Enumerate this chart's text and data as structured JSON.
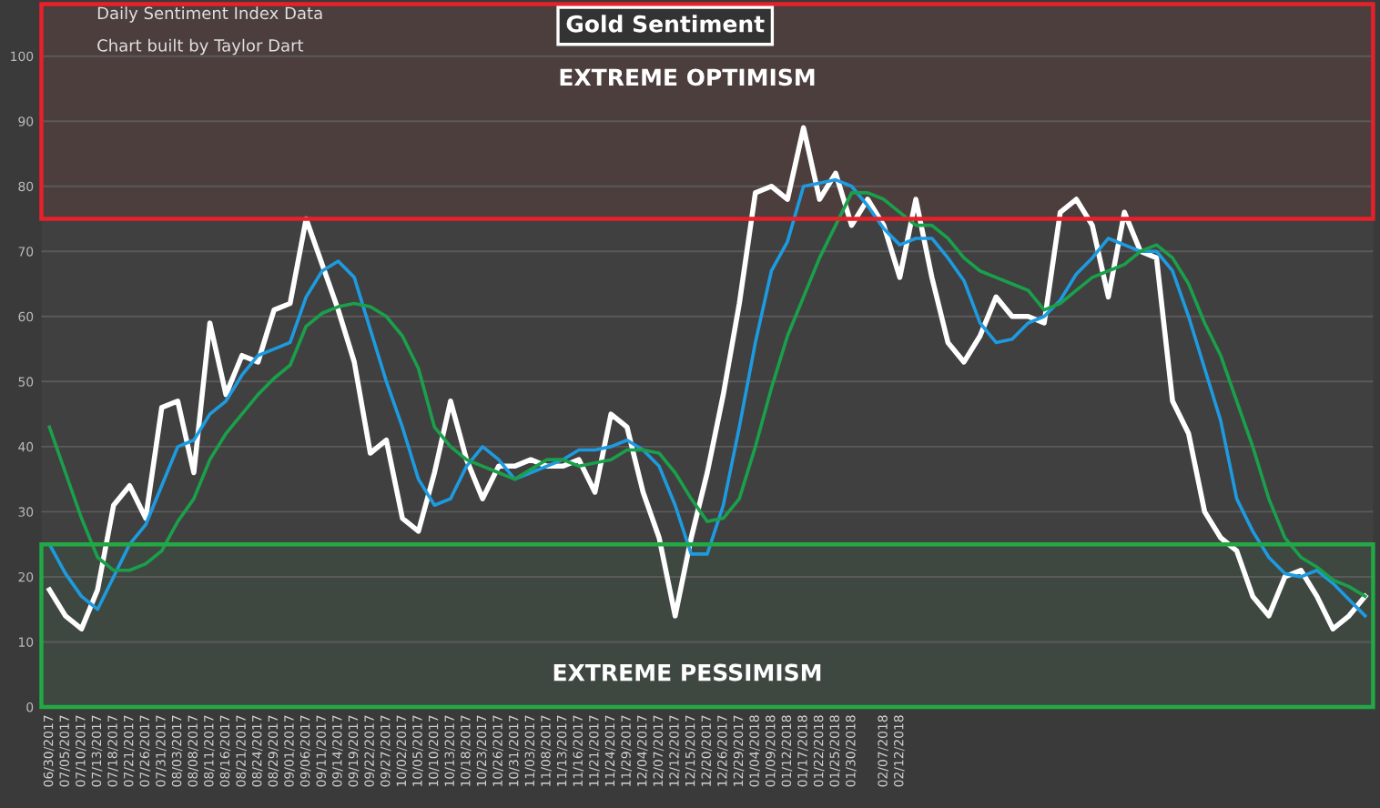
{
  "chart_data": {
    "type": "line",
    "title": "Gold Sentiment",
    "annotations": [
      "Daily Sentiment Index Data",
      "Chart built by Taylor Dart"
    ],
    "categories": [
      "06/30/2017",
      "07/05/2017",
      "07/10/2017",
      "07/13/2017",
      "07/18/2017",
      "07/21/2017",
      "07/26/2017",
      "07/31/2017",
      "08/03/2017",
      "08/08/2017",
      "08/11/2017",
      "08/16/2017",
      "08/21/2017",
      "08/24/2017",
      "08/29/2017",
      "09/01/2017",
      "09/06/2017",
      "09/11/2017",
      "09/14/2017",
      "09/19/2017",
      "09/22/2017",
      "09/27/2017",
      "10/02/2017",
      "10/05/2017",
      "10/10/2017",
      "10/13/2017",
      "10/18/2017",
      "10/23/2017",
      "10/26/2017",
      "10/31/2017",
      "11/03/2017",
      "11/08/2017",
      "11/13/2017",
      "11/16/2017",
      "11/21/2017",
      "11/24/2017",
      "11/29/2017",
      "12/04/2017",
      "12/07/2017",
      "12/12/2017",
      "12/15/2017",
      "12/20/2017",
      "12/26/2017",
      "12/29/2017",
      "01/04/2018",
      "01/09/2018",
      "01/12/2018",
      "01/17/2018",
      "01/22/2018",
      "01/25/2018",
      "01/30/2018",
      null,
      "02/07/2018",
      "02/12/2018",
      null,
      null,
      null,
      null,
      null,
      null,
      null,
      null,
      null,
      null,
      null,
      null,
      null,
      null,
      null,
      null,
      null,
      null,
      null,
      null,
      null,
      null,
      null,
      null,
      null,
      null,
      null,
      null,
      null
    ],
    "series": [
      {
        "color": "#ffffff",
        "values": [
          18,
          14,
          12,
          18,
          31,
          34,
          29,
          46,
          47,
          36,
          59,
          48,
          54,
          53,
          61,
          62,
          75,
          68,
          61,
          53,
          39,
          41,
          29,
          27,
          36,
          47,
          38,
          32,
          37,
          37,
          38,
          37,
          37,
          38,
          33,
          45,
          43,
          33,
          26,
          14,
          26,
          36,
          48,
          62,
          79,
          80,
          78,
          89,
          78,
          82,
          74,
          78,
          74,
          66,
          78,
          66,
          56,
          53,
          57,
          63,
          60,
          60,
          59,
          76,
          78,
          74,
          63,
          76,
          70,
          69,
          47,
          42,
          30,
          26,
          24,
          17,
          14,
          20,
          21,
          17,
          12,
          14,
          17
        ]
      },
      {
        "color": "#1e9be0",
        "values": [
          25,
          20.5,
          17,
          15,
          20,
          25,
          28,
          34,
          40,
          41,
          45,
          47,
          51,
          54,
          55,
          56,
          63,
          67,
          68.5,
          66,
          58,
          50,
          43,
          35,
          31,
          32,
          37,
          40,
          38,
          35,
          36,
          37,
          38,
          39.5,
          39.5,
          40,
          41,
          39.5,
          37,
          31,
          23.5,
          23.5,
          31,
          43,
          56,
          67,
          71.5,
          80,
          80.5,
          81,
          80,
          77,
          73.5,
          71,
          72,
          72,
          69,
          65.5,
          59,
          56,
          56.5,
          59,
          60,
          62.5,
          66.5,
          69,
          72,
          71,
          70,
          70,
          67,
          60,
          52,
          44,
          32,
          27,
          23,
          20.5,
          20,
          21,
          19,
          16.5,
          14
        ]
      },
      {
        "color": "#1aa04a",
        "values": [
          43,
          36,
          29,
          23,
          21,
          21,
          22,
          24,
          28.5,
          32,
          38,
          42,
          45,
          48,
          50.5,
          52.5,
          58.5,
          60.5,
          61.5,
          62,
          61.5,
          60,
          57,
          52,
          43,
          40,
          38,
          37,
          36,
          35,
          36.5,
          38,
          38,
          37,
          37.5,
          38,
          39.5,
          39.5,
          39,
          36,
          32,
          28.5,
          29,
          32,
          40,
          49,
          57,
          63,
          69,
          74,
          79,
          79,
          78,
          76,
          74,
          74,
          72,
          69,
          67,
          66,
          65,
          64,
          61,
          62,
          64,
          66,
          67,
          68,
          70,
          71,
          69,
          65,
          59,
          54,
          47,
          40,
          32,
          26,
          23,
          21.5,
          19.5,
          18.5,
          17
        ]
      }
    ],
    "ylim": [
      0,
      108
    ],
    "yticks": [
      0,
      10,
      20,
      30,
      40,
      50,
      60,
      70,
      80,
      90,
      100
    ],
    "grid": "y",
    "bands": [
      {
        "axis": "y",
        "from": 75,
        "to": 108,
        "label": "EXTREME OPTIMISM",
        "color": "#e8202a"
      },
      {
        "axis": "y",
        "from": 0,
        "to": 25,
        "label": "EXTREME PESSIMISM",
        "color": "#22a845"
      }
    ]
  }
}
